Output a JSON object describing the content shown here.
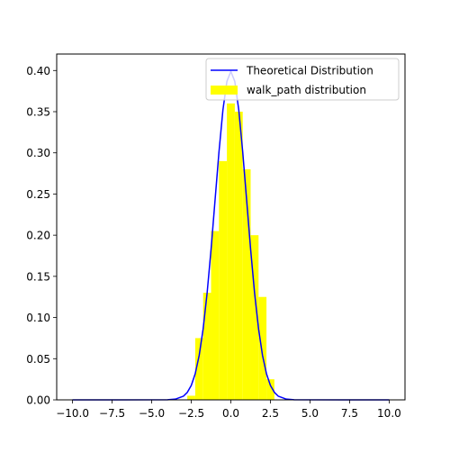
{
  "chart_data": {
    "type": "line",
    "title": "",
    "xlabel": "",
    "ylabel": "",
    "xlim": [
      -11.0,
      11.0
    ],
    "ylim": [
      0.0,
      0.42
    ],
    "xticks": [
      -10.0,
      -7.5,
      -5.0,
      -2.5,
      0.0,
      2.5,
      5.0,
      7.5,
      10.0
    ],
    "xtick_labels": [
      "−10.0",
      "−7.5",
      "−5.0",
      "−2.5",
      "0.0",
      "2.5",
      "5.0",
      "7.5",
      "10.0"
    ],
    "yticks": [
      0.0,
      0.05,
      0.1,
      0.15,
      0.2,
      0.25,
      0.3,
      0.35,
      0.4
    ],
    "ytick_labels": [
      "0.00",
      "0.05",
      "0.10",
      "0.15",
      "0.20",
      "0.25",
      "0.30",
      "0.35",
      "0.40"
    ],
    "grid": false,
    "legend_position": "top-right",
    "series": [
      {
        "name": "Theoretical Distribution",
        "kind": "line",
        "color": "#0000ff",
        "x": [
          -10,
          -4,
          -3.5,
          -3,
          -2.75,
          -2.5,
          -2.25,
          -2,
          -1.75,
          -1.5,
          -1.25,
          -1,
          -0.75,
          -0.5,
          -0.25,
          0,
          0.25,
          0.5,
          0.75,
          1,
          1.25,
          1.5,
          1.75,
          2,
          2.25,
          2.5,
          2.75,
          3,
          3.5,
          4,
          10
        ],
        "y": [
          0.0,
          0.0001,
          0.0009,
          0.0044,
          0.0091,
          0.0175,
          0.0317,
          0.054,
          0.0863,
          0.1295,
          0.1826,
          0.242,
          0.3011,
          0.3521,
          0.3867,
          0.3989,
          0.3867,
          0.3521,
          0.3011,
          0.242,
          0.1826,
          0.1295,
          0.0863,
          0.054,
          0.0317,
          0.0175,
          0.0091,
          0.0044,
          0.0009,
          0.0001,
          0.0
        ]
      },
      {
        "name": "walk_path distribution",
        "kind": "histogram",
        "color": "#ffff00",
        "bins": [
          -2.75,
          -2.25,
          -1.75,
          -1.25,
          -0.75,
          -0.25,
          0.25,
          0.75,
          1.25,
          1.75,
          2.25,
          2.75
        ],
        "values": [
          0.005,
          0.075,
          0.13,
          0.205,
          0.29,
          0.36,
          0.35,
          0.28,
          0.2,
          0.125,
          0.025
        ]
      }
    ]
  }
}
